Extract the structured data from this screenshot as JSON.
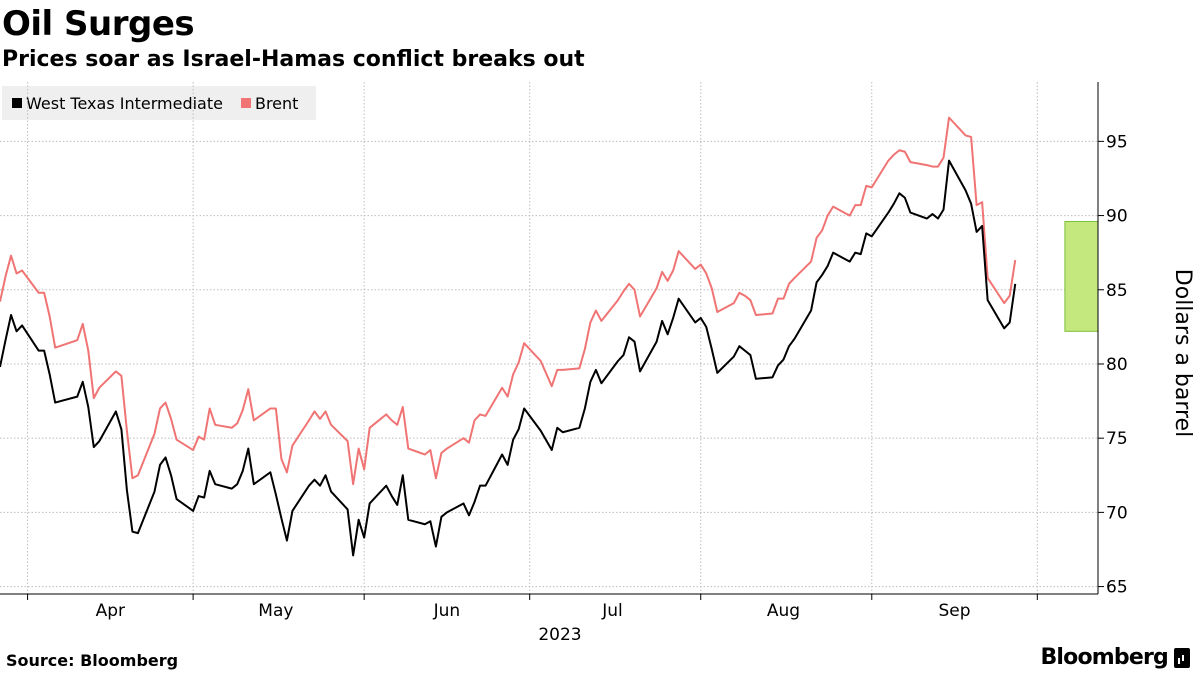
{
  "header": {
    "title": "Oil Surges",
    "subtitle": "Prices soar as Israel-Hamas conflict breaks out"
  },
  "footer": {
    "source": "Source: Bloomberg",
    "logo": "Bloomberg"
  },
  "colors": {
    "wti": "#000000",
    "brent": "#f07474",
    "highlight_fill": "#c4e87e",
    "highlight_stroke": "#7ec03a",
    "grid": "#bdbdbd"
  },
  "chart_data": {
    "type": "line",
    "xlabel": "",
    "ylabel": "Dollars a barrel",
    "ylim": [
      64.5,
      99
    ],
    "yticks": [
      65,
      70,
      75,
      80,
      85,
      90,
      95
    ],
    "xlim": [
      "2023-03-27",
      "2023-10-12"
    ],
    "month_labels": [
      {
        "label": "Apr",
        "date": "2023-04-01"
      },
      {
        "label": "May",
        "date": "2023-05-01"
      },
      {
        "label": "Jun",
        "date": "2023-06-01"
      },
      {
        "label": "Jul",
        "date": "2023-07-01"
      },
      {
        "label": "Aug",
        "date": "2023-08-01"
      },
      {
        "label": "Sep",
        "date": "2023-09-01"
      }
    ],
    "year_label": "2023",
    "grid": true,
    "legend_position": "top-left",
    "highlight": {
      "x_from": "2023-10-06",
      "x_to": "2023-10-12",
      "y_from": 82.2,
      "y_to": 89.6
    },
    "series": [
      {
        "name": "West Texas Intermediate",
        "points": [
          [
            "2023-03-27",
            79.8
          ],
          [
            "2023-03-28",
            81.6
          ],
          [
            "2023-03-29",
            83.3
          ],
          [
            "2023-03-30",
            82.2
          ],
          [
            "2023-03-31",
            82.6
          ],
          [
            "2023-04-03",
            80.9
          ],
          [
            "2023-04-04",
            80.9
          ],
          [
            "2023-04-05",
            79.3
          ],
          [
            "2023-04-06",
            77.4
          ],
          [
            "2023-04-10",
            77.8
          ],
          [
            "2023-04-11",
            78.8
          ],
          [
            "2023-04-12",
            77.1
          ],
          [
            "2023-04-13",
            74.4
          ],
          [
            "2023-04-14",
            74.8
          ],
          [
            "2023-04-17",
            76.8
          ],
          [
            "2023-04-18",
            75.6
          ],
          [
            "2023-04-19",
            71.5
          ],
          [
            "2023-04-20",
            68.7
          ],
          [
            "2023-04-21",
            68.6
          ],
          [
            "2023-04-24",
            71.4
          ],
          [
            "2023-04-25",
            73.2
          ],
          [
            "2023-04-26",
            73.7
          ],
          [
            "2023-04-27",
            72.5
          ],
          [
            "2023-04-28",
            70.9
          ],
          [
            "2023-05-01",
            70.1
          ],
          [
            "2023-05-02",
            71.1
          ],
          [
            "2023-05-03",
            71.0
          ],
          [
            "2023-05-04",
            72.8
          ],
          [
            "2023-05-05",
            71.9
          ],
          [
            "2023-05-08",
            71.6
          ],
          [
            "2023-05-09",
            71.9
          ],
          [
            "2023-05-10",
            72.8
          ],
          [
            "2023-05-11",
            74.3
          ],
          [
            "2023-05-12",
            71.9
          ],
          [
            "2023-05-15",
            72.7
          ],
          [
            "2023-05-16",
            71.2
          ],
          [
            "2023-05-17",
            69.6
          ],
          [
            "2023-05-18",
            68.1
          ],
          [
            "2023-05-19",
            70.1
          ],
          [
            "2023-05-22",
            71.8
          ],
          [
            "2023-05-23",
            72.2
          ],
          [
            "2023-05-24",
            71.8
          ],
          [
            "2023-05-25",
            72.5
          ],
          [
            "2023-05-26",
            71.4
          ],
          [
            "2023-05-29",
            70.2
          ],
          [
            "2023-05-30",
            67.1
          ],
          [
            "2023-05-31",
            69.5
          ],
          [
            "2023-06-01",
            68.3
          ],
          [
            "2023-06-02",
            70.6
          ],
          [
            "2023-06-05",
            71.8
          ],
          [
            "2023-06-06",
            71.1
          ],
          [
            "2023-06-07",
            70.5
          ],
          [
            "2023-06-08",
            72.5
          ],
          [
            "2023-06-09",
            69.5
          ],
          [
            "2023-06-12",
            69.2
          ],
          [
            "2023-06-13",
            69.4
          ],
          [
            "2023-06-14",
            67.7
          ],
          [
            "2023-06-15",
            69.7
          ],
          [
            "2023-06-16",
            70.0
          ],
          [
            "2023-06-19",
            70.6
          ],
          [
            "2023-06-20",
            69.8
          ],
          [
            "2023-06-21",
            70.7
          ],
          [
            "2023-06-22",
            71.8
          ],
          [
            "2023-06-23",
            71.8
          ],
          [
            "2023-06-26",
            73.9
          ],
          [
            "2023-06-27",
            73.2
          ],
          [
            "2023-06-28",
            74.9
          ],
          [
            "2023-06-29",
            75.6
          ],
          [
            "2023-06-30",
            77.0
          ],
          [
            "2023-07-03",
            75.5
          ],
          [
            "2023-07-05",
            74.2
          ],
          [
            "2023-07-06",
            75.7
          ],
          [
            "2023-07-07",
            75.4
          ],
          [
            "2023-07-10",
            75.7
          ],
          [
            "2023-07-11",
            77.0
          ],
          [
            "2023-07-12",
            78.8
          ],
          [
            "2023-07-13",
            79.6
          ],
          [
            "2023-07-14",
            78.7
          ],
          [
            "2023-07-17",
            80.2
          ],
          [
            "2023-07-18",
            80.6
          ],
          [
            "2023-07-19",
            81.8
          ],
          [
            "2023-07-20",
            81.5
          ],
          [
            "2023-07-21",
            79.5
          ],
          [
            "2023-07-24",
            81.5
          ],
          [
            "2023-07-25",
            82.9
          ],
          [
            "2023-07-26",
            82.0
          ],
          [
            "2023-07-27",
            83.1
          ],
          [
            "2023-07-28",
            84.4
          ],
          [
            "2023-07-31",
            82.8
          ],
          [
            "2023-08-01",
            83.1
          ],
          [
            "2023-08-02",
            82.5
          ],
          [
            "2023-08-03",
            81.0
          ],
          [
            "2023-08-04",
            79.4
          ],
          [
            "2023-08-07",
            80.5
          ],
          [
            "2023-08-08",
            81.2
          ],
          [
            "2023-08-09",
            80.9
          ],
          [
            "2023-08-10",
            80.6
          ],
          [
            "2023-08-11",
            79.0
          ],
          [
            "2023-08-14",
            79.1
          ],
          [
            "2023-08-15",
            79.9
          ],
          [
            "2023-08-16",
            80.3
          ],
          [
            "2023-08-17",
            81.2
          ],
          [
            "2023-08-18",
            81.7
          ],
          [
            "2023-08-21",
            83.6
          ],
          [
            "2023-08-22",
            85.5
          ],
          [
            "2023-08-23",
            86.0
          ],
          [
            "2023-08-24",
            86.6
          ],
          [
            "2023-08-25",
            87.5
          ],
          [
            "2023-08-28",
            86.9
          ],
          [
            "2023-08-29",
            87.5
          ],
          [
            "2023-08-30",
            87.4
          ],
          [
            "2023-08-31",
            88.8
          ],
          [
            "2023-09-01",
            88.6
          ],
          [
            "2023-09-04",
            90.2
          ],
          [
            "2023-09-05",
            90.8
          ],
          [
            "2023-09-06",
            91.5
          ],
          [
            "2023-09-07",
            91.2
          ],
          [
            "2023-09-08",
            90.2
          ],
          [
            "2023-09-11",
            89.8
          ],
          [
            "2023-09-12",
            90.1
          ],
          [
            "2023-09-13",
            89.8
          ],
          [
            "2023-09-14",
            90.4
          ],
          [
            "2023-09-15",
            93.7
          ],
          [
            "2023-09-18",
            91.7
          ],
          [
            "2023-09-19",
            90.8
          ],
          [
            "2023-09-20",
            88.9
          ],
          [
            "2023-09-21",
            89.3
          ],
          [
            "2023-09-22",
            84.3
          ],
          [
            "2023-09-25",
            82.4
          ],
          [
            "2023-09-26",
            82.8
          ],
          [
            "2023-09-27",
            85.4
          ]
        ]
      },
      {
        "name": "Brent",
        "points": [
          [
            "2023-03-27",
            84.2
          ],
          [
            "2023-03-28",
            85.9
          ],
          [
            "2023-03-29",
            87.3
          ],
          [
            "2023-03-30",
            86.1
          ],
          [
            "2023-03-31",
            86.3
          ],
          [
            "2023-04-03",
            84.8
          ],
          [
            "2023-04-04",
            84.8
          ],
          [
            "2023-04-05",
            83.2
          ],
          [
            "2023-04-06",
            81.1
          ],
          [
            "2023-04-10",
            81.6
          ],
          [
            "2023-04-11",
            82.7
          ],
          [
            "2023-04-12",
            80.9
          ],
          [
            "2023-04-13",
            77.7
          ],
          [
            "2023-04-14",
            78.4
          ],
          [
            "2023-04-17",
            79.5
          ],
          [
            "2023-04-18",
            79.2
          ],
          [
            "2023-04-19",
            75.5
          ],
          [
            "2023-04-20",
            72.3
          ],
          [
            "2023-04-21",
            72.5
          ],
          [
            "2023-04-24",
            75.3
          ],
          [
            "2023-04-25",
            77.0
          ],
          [
            "2023-04-26",
            77.4
          ],
          [
            "2023-04-27",
            76.3
          ],
          [
            "2023-04-28",
            74.9
          ],
          [
            "2023-05-01",
            74.2
          ],
          [
            "2023-05-02",
            75.1
          ],
          [
            "2023-05-03",
            74.9
          ],
          [
            "2023-05-04",
            77.0
          ],
          [
            "2023-05-05",
            75.9
          ],
          [
            "2023-05-08",
            75.7
          ],
          [
            "2023-05-09",
            76.0
          ],
          [
            "2023-05-10",
            76.9
          ],
          [
            "2023-05-11",
            78.3
          ],
          [
            "2023-05-12",
            76.2
          ],
          [
            "2023-05-15",
            77.0
          ],
          [
            "2023-05-16",
            77.0
          ],
          [
            "2023-05-17",
            73.6
          ],
          [
            "2023-05-18",
            72.7
          ],
          [
            "2023-05-19",
            74.5
          ],
          [
            "2023-05-22",
            76.2
          ],
          [
            "2023-05-23",
            76.8
          ],
          [
            "2023-05-24",
            76.3
          ],
          [
            "2023-05-25",
            76.8
          ],
          [
            "2023-05-26",
            75.9
          ],
          [
            "2023-05-29",
            74.8
          ],
          [
            "2023-05-30",
            71.9
          ],
          [
            "2023-05-31",
            74.3
          ],
          [
            "2023-06-01",
            72.9
          ],
          [
            "2023-06-02",
            75.7
          ],
          [
            "2023-06-05",
            76.6
          ],
          [
            "2023-06-06",
            76.2
          ],
          [
            "2023-06-07",
            75.9
          ],
          [
            "2023-06-08",
            77.1
          ],
          [
            "2023-06-09",
            74.3
          ],
          [
            "2023-06-12",
            73.9
          ],
          [
            "2023-06-13",
            74.2
          ],
          [
            "2023-06-14",
            72.3
          ],
          [
            "2023-06-15",
            74.0
          ],
          [
            "2023-06-16",
            74.3
          ],
          [
            "2023-06-19",
            75.0
          ],
          [
            "2023-06-20",
            74.7
          ],
          [
            "2023-06-21",
            76.2
          ],
          [
            "2023-06-22",
            76.6
          ],
          [
            "2023-06-23",
            76.5
          ],
          [
            "2023-06-26",
            78.4
          ],
          [
            "2023-06-27",
            77.8
          ],
          [
            "2023-06-28",
            79.3
          ],
          [
            "2023-06-29",
            80.1
          ],
          [
            "2023-06-30",
            81.4
          ],
          [
            "2023-07-03",
            80.2
          ],
          [
            "2023-07-05",
            78.5
          ],
          [
            "2023-07-06",
            79.6
          ],
          [
            "2023-07-07",
            79.6
          ],
          [
            "2023-07-10",
            79.7
          ],
          [
            "2023-07-11",
            81.0
          ],
          [
            "2023-07-12",
            82.8
          ],
          [
            "2023-07-13",
            83.6
          ],
          [
            "2023-07-14",
            82.9
          ],
          [
            "2023-07-17",
            84.3
          ],
          [
            "2023-07-18",
            84.9
          ],
          [
            "2023-07-19",
            85.4
          ],
          [
            "2023-07-20",
            85.0
          ],
          [
            "2023-07-21",
            83.2
          ],
          [
            "2023-07-24",
            85.1
          ],
          [
            "2023-07-25",
            86.2
          ],
          [
            "2023-07-26",
            85.6
          ],
          [
            "2023-07-27",
            86.3
          ],
          [
            "2023-07-28",
            87.6
          ],
          [
            "2023-07-31",
            86.4
          ],
          [
            "2023-08-01",
            86.7
          ],
          [
            "2023-08-02",
            86.1
          ],
          [
            "2023-08-03",
            85.1
          ],
          [
            "2023-08-04",
            83.5
          ],
          [
            "2023-08-07",
            84.1
          ],
          [
            "2023-08-08",
            84.8
          ],
          [
            "2023-08-09",
            84.6
          ],
          [
            "2023-08-10",
            84.3
          ],
          [
            "2023-08-11",
            83.3
          ],
          [
            "2023-08-14",
            83.4
          ],
          [
            "2023-08-15",
            84.4
          ],
          [
            "2023-08-16",
            84.4
          ],
          [
            "2023-08-17",
            85.4
          ],
          [
            "2023-08-18",
            85.8
          ],
          [
            "2023-08-21",
            86.9
          ],
          [
            "2023-08-22",
            88.5
          ],
          [
            "2023-08-23",
            89.0
          ],
          [
            "2023-08-24",
            90.0
          ],
          [
            "2023-08-25",
            90.6
          ],
          [
            "2023-08-28",
            90.0
          ],
          [
            "2023-08-29",
            90.7
          ],
          [
            "2023-08-30",
            90.7
          ],
          [
            "2023-08-31",
            92.0
          ],
          [
            "2023-09-01",
            91.9
          ],
          [
            "2023-09-04",
            93.7
          ],
          [
            "2023-09-05",
            94.1
          ],
          [
            "2023-09-06",
            94.4
          ],
          [
            "2023-09-07",
            94.3
          ],
          [
            "2023-09-08",
            93.6
          ],
          [
            "2023-09-11",
            93.4
          ],
          [
            "2023-09-12",
            93.3
          ],
          [
            "2023-09-13",
            93.3
          ],
          [
            "2023-09-14",
            93.9
          ],
          [
            "2023-09-15",
            96.6
          ],
          [
            "2023-09-18",
            95.4
          ],
          [
            "2023-09-19",
            95.3
          ],
          [
            "2023-09-20",
            90.7
          ],
          [
            "2023-09-21",
            90.9
          ],
          [
            "2023-09-22",
            85.8
          ],
          [
            "2023-09-25",
            84.1
          ],
          [
            "2023-09-26",
            84.6
          ],
          [
            "2023-09-27",
            87.0
          ]
        ]
      }
    ]
  }
}
